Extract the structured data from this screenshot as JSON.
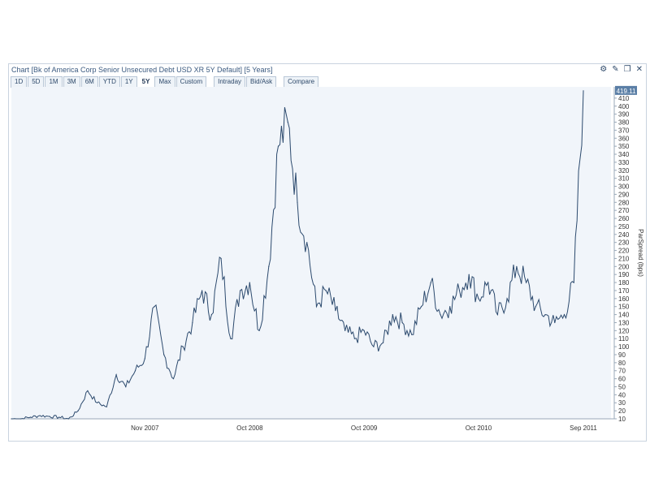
{
  "header": {
    "title": "Chart [Bk of America Corp Senior Unsecured Debt USD XR 5Y Default] [5 Years]"
  },
  "icons": [
    "gear-icon",
    "pencil-icon",
    "popout-icon",
    "close-icon"
  ],
  "toolbar": {
    "ranges": [
      "1D",
      "5D",
      "1M",
      "3M",
      "6M",
      "YTD",
      "1Y",
      "5Y",
      "Max",
      "Custom"
    ],
    "active_range": "5Y",
    "modes": [
      "Intraday",
      "Bid/Ask"
    ],
    "compare": "Compare"
  },
  "chart_data": {
    "type": "line",
    "ylabel": "ParSpread (bps)",
    "ylim": [
      10,
      420
    ],
    "y_tick_step": 10,
    "x_ticks": [
      "Nov 2007",
      "Oct 2008",
      "Oct 2009",
      "Oct 2010",
      "Sep 2011"
    ],
    "last_value_label": "419.11",
    "grid": false,
    "line_color": "#2c4a6e",
    "background_color": "#f1f5fa",
    "series": [
      {
        "x": [
          "2006-09",
          "2006-10",
          "2006-11",
          "2006-12",
          "2007-01",
          "2007-02",
          "2007-03",
          "2007-04",
          "2007-05",
          "2007-06",
          "2007-07",
          "2007-08",
          "2007-09",
          "2007-10",
          "2007-11",
          "2007-12",
          "2008-01",
          "2008-02",
          "2008-03",
          "2008-04",
          "2008-05",
          "2008-06",
          "2008-07",
          "2008-08",
          "2008-09",
          "2008-10",
          "2008-11",
          "2008-12",
          "2009-01",
          "2009-02",
          "2009-03",
          "2009-04",
          "2009-05",
          "2009-06",
          "2009-07",
          "2009-08",
          "2009-09",
          "2009-10",
          "2009-11",
          "2009-12",
          "2010-01",
          "2010-02",
          "2010-03",
          "2010-04",
          "2010-05",
          "2010-06",
          "2010-07",
          "2010-08",
          "2010-09",
          "2010-10",
          "2010-11",
          "2010-12",
          "2011-01",
          "2011-02",
          "2011-03",
          "2011-04",
          "2011-05",
          "2011-06",
          "2011-07",
          "2011-08",
          "2011-09"
        ],
        "values": [
          10,
          10,
          12,
          14,
          13,
          12,
          10,
          20,
          45,
          30,
          25,
          65,
          50,
          70,
          85,
          150,
          90,
          60,
          100,
          130,
          170,
          140,
          210,
          110,
          170,
          180,
          120,
          200,
          350,
          380,
          280,
          230,
          150,
          170,
          145,
          120,
          110,
          120,
          100,
          105,
          140,
          130,
          115,
          150,
          180,
          140,
          150,
          170,
          190,
          160,
          180,
          140,
          160,
          200,
          180,
          150,
          140,
          130,
          140,
          180,
          419.11
        ]
      }
    ]
  }
}
